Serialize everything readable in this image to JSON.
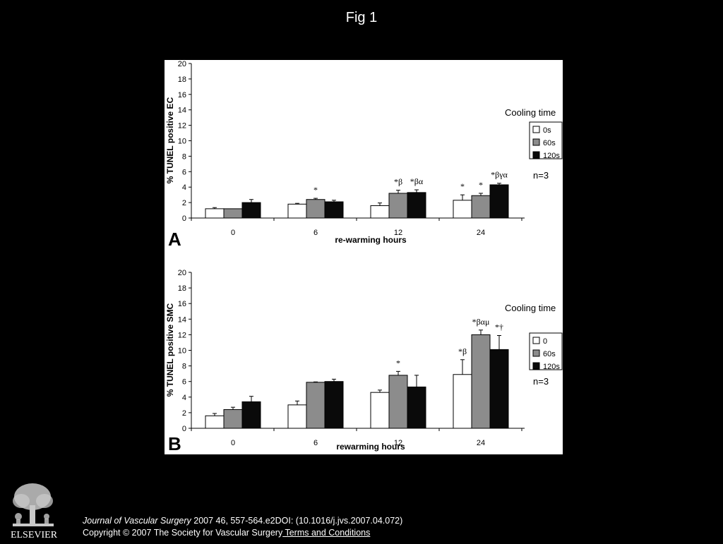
{
  "slide": {
    "title": "Fig 1"
  },
  "colors": {
    "background": "#000000",
    "panel": "#ffffff",
    "bar_0s": "#ffffff",
    "bar_60s": "#8c8c8c",
    "bar_120s": "#0a0a0a"
  },
  "chart_data": [
    {
      "type": "bar",
      "panel_label": "A",
      "title": "",
      "xlabel": "re-warming hours",
      "ylabel": "% TUNEL positive EC",
      "ylim": [
        0,
        20
      ],
      "yticks": [
        0,
        2,
        4,
        6,
        8,
        10,
        12,
        14,
        16,
        18,
        20
      ],
      "categories": [
        "0",
        "6",
        "12",
        "24"
      ],
      "legend": {
        "title": "Cooling time",
        "placement": "right"
      },
      "series": [
        {
          "name": "0s",
          "values": [
            1.2,
            1.8,
            1.6,
            2.3
          ],
          "errors": [
            0.15,
            0.1,
            0.35,
            0.7
          ],
          "color": "#ffffff"
        },
        {
          "name": "60s",
          "values": [
            1.2,
            2.4,
            3.2,
            2.9
          ],
          "errors": [
            0.0,
            0.15,
            0.4,
            0.3
          ],
          "color": "#8c8c8c"
        },
        {
          "name": "120s",
          "values": [
            2.0,
            2.1,
            3.3,
            4.3
          ],
          "errors": [
            0.4,
            0.2,
            0.35,
            0.2
          ],
          "color": "#0a0a0a"
        }
      ],
      "annotations": [
        {
          "category": "6",
          "series": "60s",
          "text": "*"
        },
        {
          "category": "12",
          "series": "60s",
          "text": "*β"
        },
        {
          "category": "12",
          "series": "120s",
          "text": "*βα"
        },
        {
          "category": "24",
          "series": "0s",
          "text": "*"
        },
        {
          "category": "24",
          "series": "60s",
          "text": "*"
        },
        {
          "category": "24",
          "series": "120s",
          "text": "*βγα"
        }
      ],
      "note": "n=3"
    },
    {
      "type": "bar",
      "panel_label": "B",
      "title": "",
      "xlabel": "rewarming hours",
      "ylabel": "% TUNEL positive SMC",
      "ylim": [
        0,
        20
      ],
      "yticks": [
        0,
        2,
        4,
        6,
        8,
        10,
        12,
        14,
        16,
        18,
        20
      ],
      "categories": [
        "0",
        "6",
        "12",
        "24"
      ],
      "legend": {
        "title": "Cooling time",
        "placement": "right"
      },
      "series": [
        {
          "name": "0",
          "values": [
            1.6,
            3.0,
            4.6,
            6.9
          ],
          "errors": [
            0.3,
            0.5,
            0.3,
            1.9
          ],
          "color": "#ffffff"
        },
        {
          "name": "60s",
          "values": [
            2.4,
            5.9,
            6.8,
            12.0
          ],
          "errors": [
            0.3,
            0.05,
            0.5,
            0.6
          ],
          "color": "#8c8c8c"
        },
        {
          "name": "120s",
          "values": [
            3.4,
            6.0,
            5.3,
            10.1
          ],
          "errors": [
            0.7,
            0.3,
            1.5,
            1.8
          ],
          "color": "#0a0a0a"
        }
      ],
      "annotations": [
        {
          "category": "12",
          "series": "60s",
          "text": "*"
        },
        {
          "category": "24",
          "series": "0",
          "text": "*β"
        },
        {
          "category": "24",
          "series": "60s",
          "text": "*βαμ"
        },
        {
          "category": "24",
          "series": "120s",
          "text": "*†"
        }
      ],
      "note": "n=3"
    }
  ],
  "publisher": {
    "logo_text": "ELSEVIER"
  },
  "citation": {
    "journal": "Journal of Vascular Surgery",
    "reference": " 2007 46, 557-564.e2DOI: (10.1016/j.jvs.2007.04.072)",
    "copyright": "Copyright © 2007 The Society for Vascular Surgery",
    "terms_link": " Terms and Conditions"
  }
}
